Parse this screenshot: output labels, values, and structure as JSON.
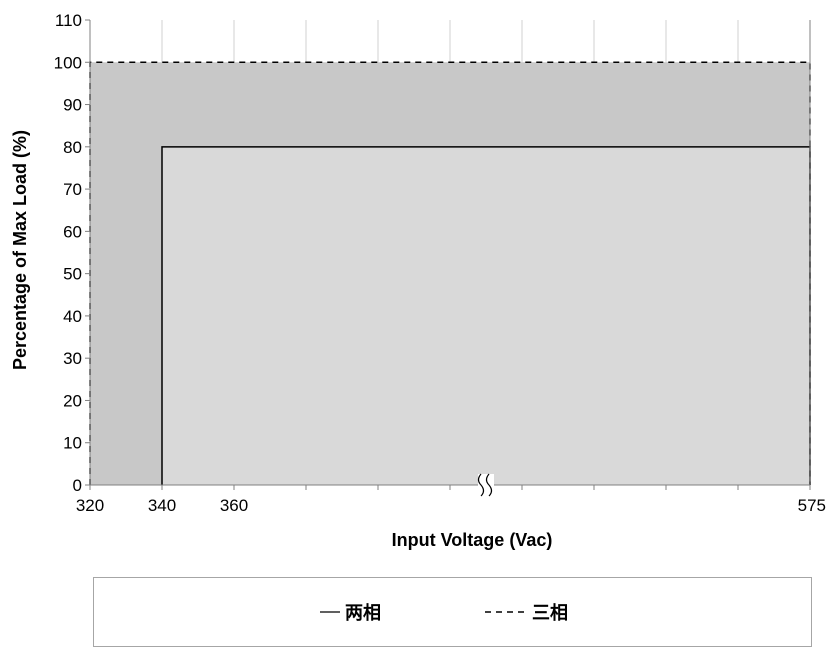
{
  "chart_data": {
    "type": "area",
    "xlabel": "Input Voltage (Vac)",
    "ylabel": "Percentage of Max Load (%)",
    "ylim": [
      0,
      110
    ],
    "yticks": [
      0,
      10,
      20,
      30,
      40,
      50,
      60,
      70,
      80,
      90,
      100,
      110
    ],
    "xticks": [
      "320",
      "340",
      "360",
      "575"
    ],
    "x_axis_break": true,
    "grid": "vertical",
    "legend_position": "bottom",
    "series": [
      {
        "name": "两相",
        "line_style": "solid",
        "fill": "#d9d9d9",
        "points": [
          [
            340,
            0
          ],
          [
            340,
            80
          ],
          [
            575,
            80
          ],
          [
            575,
            0
          ]
        ]
      },
      {
        "name": "三相",
        "line_style": "dashed",
        "fill": "#c8c8c8",
        "points": [
          [
            320,
            0
          ],
          [
            320,
            100
          ],
          [
            575,
            100
          ],
          [
            575,
            0
          ]
        ]
      }
    ]
  },
  "colors": {
    "grid": "#d0d0d0",
    "axis": "#808080",
    "fill_outer": "#c8c8c8",
    "fill_inner": "#d9d9d9",
    "legend_border": "#a6a6a6"
  }
}
